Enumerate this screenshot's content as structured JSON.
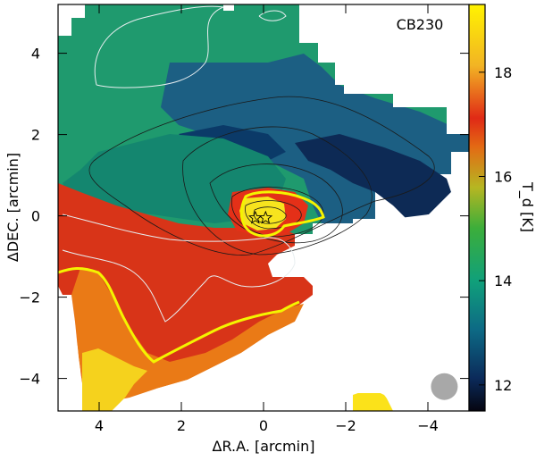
{
  "chart_data": {
    "type": "heatmap",
    "title": "CB230",
    "xlabel": "ΔR.A. [arcmin]",
    "ylabel": "ΔDEC. [arcmin]",
    "x_axis_reversed": true,
    "xlim": [
      5,
      -5
    ],
    "ylim": [
      -4.8,
      5.2
    ],
    "x_ticks": [
      4,
      2,
      0,
      -2,
      -4
    ],
    "y_ticks": [
      4,
      2,
      0,
      -2,
      -4
    ],
    "x_tick_labels": [
      "4",
      "2",
      "0",
      "−2",
      "−4"
    ],
    "y_tick_labels": [
      "4",
      "2",
      "0",
      "−2",
      "−4"
    ],
    "colorbar": {
      "label": "T_d [K]",
      "range": [
        11.5,
        19.3
      ],
      "ticks": [
        12,
        14,
        16,
        18
      ],
      "tick_labels": [
        "12",
        "14",
        "16",
        "18"
      ],
      "colormap": [
        "#050510",
        "#0b2a5a",
        "#0d6a85",
        "#10a07a",
        "#3cae3a",
        "#b6b622",
        "#e36a14",
        "#e02a16",
        "#f2b424",
        "#fff300"
      ]
    },
    "sources": [
      {
        "name": "star-1",
        "x": 0.2,
        "y": -0.05
      },
      {
        "name": "star-2",
        "x": -0.05,
        "y": -0.05
      }
    ],
    "beam": {
      "x": -4.4,
      "y": -4.2,
      "diameter_arcmin": 0.6
    },
    "grid": false,
    "legend": "none"
  }
}
